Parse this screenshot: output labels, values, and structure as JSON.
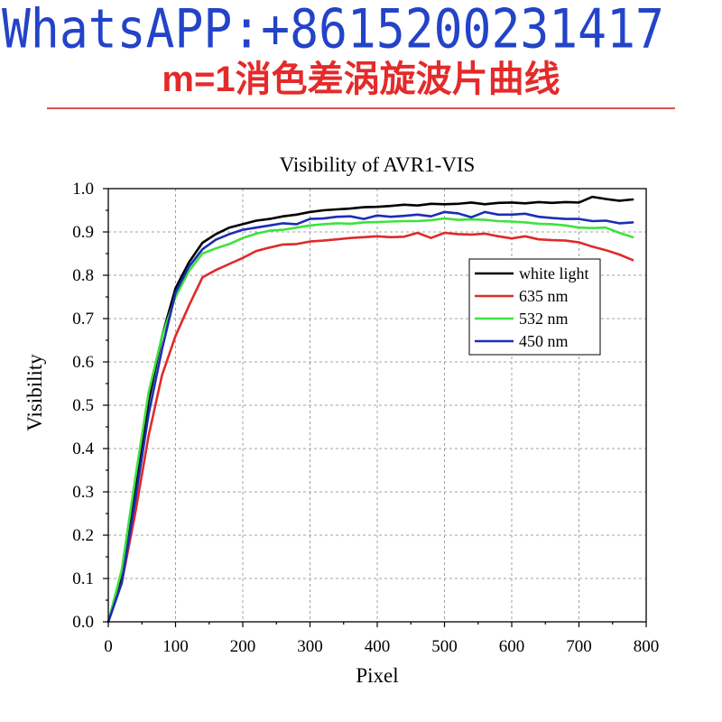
{
  "header": {
    "contact": "WhatsAPP:+8615200231417",
    "subtitle": "m=1消色差涡旋波片曲线"
  },
  "colors": {
    "contact_text": "#2343c8",
    "subtitle_text": "#e42a2a",
    "divider": "#d9534f",
    "grid": "#a0a0a0"
  },
  "chart_data": {
    "type": "line",
    "title": "Visibility of AVR1-VIS",
    "xlabel": "Pixel",
    "ylabel": "Visibility",
    "xlim": [
      0,
      800
    ],
    "ylim": [
      0,
      1
    ],
    "xticks": [
      "0",
      "100",
      "200",
      "300",
      "400",
      "500",
      "600",
      "700",
      "800"
    ],
    "yticks": [
      "0.0",
      "0.1",
      "0.2",
      "0.3",
      "0.4",
      "0.5",
      "0.6",
      "0.7",
      "0.8",
      "0.9",
      "1.0"
    ],
    "grid": true,
    "legend_position": "upper-right",
    "x": [
      0,
      20,
      40,
      60,
      80,
      100,
      120,
      140,
      160,
      180,
      200,
      220,
      240,
      260,
      280,
      300,
      320,
      340,
      360,
      380,
      400,
      420,
      440,
      460,
      480,
      500,
      520,
      540,
      560,
      580,
      600,
      620,
      640,
      660,
      680,
      700,
      720,
      740,
      760,
      780
    ],
    "series": [
      {
        "name": "white light",
        "color": "#000000",
        "values": [
          0.0,
          0.1,
          0.3,
          0.51,
          0.66,
          0.77,
          0.83,
          0.875,
          0.895,
          0.91,
          0.918,
          0.926,
          0.93,
          0.936,
          0.94,
          0.946,
          0.95,
          0.952,
          0.954,
          0.957,
          0.958,
          0.96,
          0.963,
          0.961,
          0.965,
          0.964,
          0.965,
          0.968,
          0.964,
          0.967,
          0.968,
          0.966,
          0.969,
          0.967,
          0.969,
          0.968,
          0.981,
          0.976,
          0.972,
          0.975
        ]
      },
      {
        "name": "635 nm",
        "color": "#e02a2a",
        "values": [
          0.0,
          0.09,
          0.25,
          0.43,
          0.57,
          0.66,
          0.73,
          0.795,
          0.812,
          0.826,
          0.84,
          0.856,
          0.864,
          0.871,
          0.872,
          0.878,
          0.88,
          0.883,
          0.886,
          0.888,
          0.89,
          0.888,
          0.889,
          0.898,
          0.886,
          0.898,
          0.895,
          0.894,
          0.896,
          0.89,
          0.885,
          0.89,
          0.883,
          0.881,
          0.88,
          0.876,
          0.866,
          0.858,
          0.848,
          0.835
        ]
      },
      {
        "name": "532 nm",
        "color": "#3ee23e",
        "values": [
          0.0,
          0.12,
          0.33,
          0.53,
          0.66,
          0.75,
          0.81,
          0.85,
          0.862,
          0.872,
          0.886,
          0.896,
          0.903,
          0.905,
          0.91,
          0.915,
          0.918,
          0.92,
          0.919,
          0.922,
          0.923,
          0.924,
          0.925,
          0.925,
          0.927,
          0.931,
          0.928,
          0.929,
          0.928,
          0.925,
          0.924,
          0.922,
          0.919,
          0.918,
          0.915,
          0.91,
          0.909,
          0.91,
          0.898,
          0.888
        ]
      },
      {
        "name": "450 nm",
        "color": "#1c2db5",
        "values": [
          0.0,
          0.09,
          0.28,
          0.48,
          0.63,
          0.76,
          0.82,
          0.86,
          0.882,
          0.895,
          0.905,
          0.91,
          0.915,
          0.92,
          0.918,
          0.93,
          0.931,
          0.935,
          0.936,
          0.93,
          0.938,
          0.935,
          0.937,
          0.94,
          0.936,
          0.946,
          0.943,
          0.934,
          0.946,
          0.94,
          0.94,
          0.942,
          0.935,
          0.932,
          0.93,
          0.93,
          0.925,
          0.926,
          0.92,
          0.922
        ]
      }
    ]
  }
}
